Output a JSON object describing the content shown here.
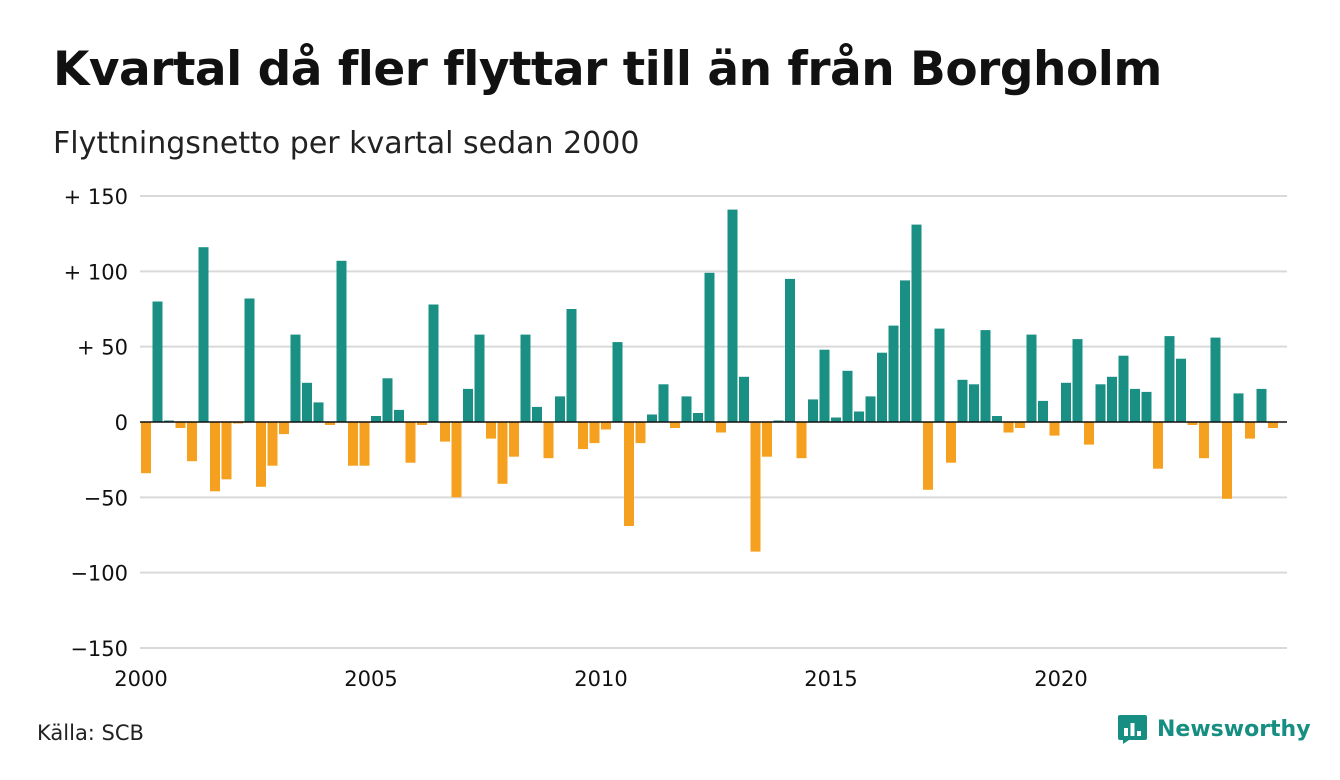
{
  "title": "Kvartal då fler flyttar till än från Borgholm",
  "subtitle": "Flyttningsnetto per kvartal sedan 2000",
  "source": "Källa: SCB",
  "brand": "Newsworthy",
  "brand_icon": "newsworthy-logo-icon",
  "colors": {
    "positive": "#1a9084",
    "negative": "#f5a11f",
    "brand": "#168f82",
    "grid": "#d9d9d9"
  },
  "chart_data": {
    "type": "bar",
    "x_start": "2000 Q1",
    "x_tick_labels": [
      "2000",
      "2005",
      "2010",
      "2015",
      "2020"
    ],
    "y_tick_labels": [
      "+ 150",
      "+ 100",
      "+  50",
      "0",
      "−50",
      "−100",
      "−150"
    ],
    "y_ticks": [
      150,
      100,
      50,
      0,
      -50,
      -100,
      -150
    ],
    "ylim": [
      -150,
      150
    ],
    "grid": true,
    "values": [
      -34,
      80,
      1,
      -4,
      -26,
      116,
      -46,
      -38,
      -1,
      82,
      -43,
      -29,
      -8,
      58,
      26,
      13,
      -2,
      107,
      -29,
      -29,
      4,
      29,
      8,
      -27,
      -2,
      78,
      -13,
      -50,
      22,
      58,
      -11,
      -41,
      -23,
      58,
      10,
      -24,
      17,
      75,
      -18,
      -14,
      -5,
      53,
      -69,
      -14,
      5,
      25,
      -4,
      17,
      6,
      99,
      -7,
      141,
      30,
      -86,
      -23,
      1,
      95,
      -24,
      15,
      48,
      3,
      34,
      7,
      17,
      46,
      64,
      94,
      131,
      -45,
      62,
      -27,
      28,
      25,
      61,
      4,
      -7,
      -4,
      58,
      14,
      -9,
      26,
      55,
      -15,
      25,
      30,
      44,
      22,
      20,
      -31,
      57,
      42,
      -2,
      -24,
      56,
      -51,
      19,
      -11,
      22,
      -4
    ]
  }
}
